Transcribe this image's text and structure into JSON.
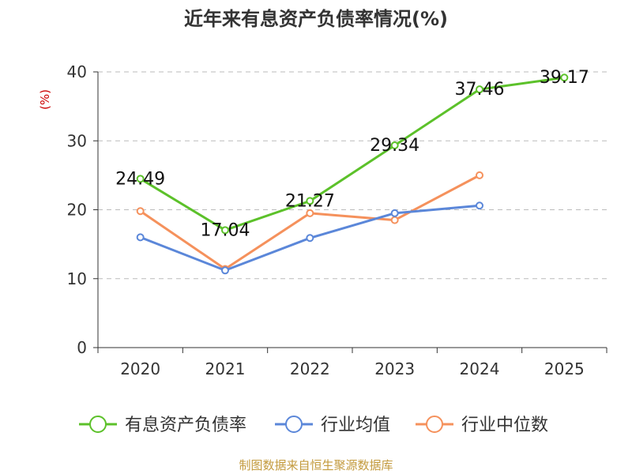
{
  "chart_data": {
    "type": "line",
    "title": "近年来有息资产负债率情况(%)",
    "ylabel": "(%)",
    "xlabel": "",
    "categories": [
      "2020",
      "2021",
      "2022",
      "2023",
      "2024",
      "2025"
    ],
    "ylim": [
      0,
      40
    ],
    "yticks": [
      0,
      10,
      20,
      30,
      40
    ],
    "grid": true,
    "legend_position": "bottom",
    "series": [
      {
        "name": "有息资产负债率",
        "color": "#5cc12a",
        "values": [
          24.49,
          17.04,
          21.27,
          29.34,
          37.46,
          39.17
        ],
        "labels": [
          "24.49",
          "17.04",
          "21.27",
          "29.34",
          "37.46",
          "39.17"
        ]
      },
      {
        "name": "行业均值",
        "color": "#5b87d9",
        "values": [
          16.0,
          11.2,
          15.9,
          19.5,
          20.6,
          null
        ]
      },
      {
        "name": "行业中位数",
        "color": "#f5915c",
        "values": [
          19.8,
          11.4,
          19.5,
          18.5,
          25.0,
          null
        ]
      }
    ]
  },
  "source": "制图数据来自恒生聚源数据库",
  "colors": {
    "title": "#333333",
    "ylabel": "#cc0000",
    "source": "#c39a3d",
    "axis": "#333333",
    "grid": "#bbbbbb"
  }
}
